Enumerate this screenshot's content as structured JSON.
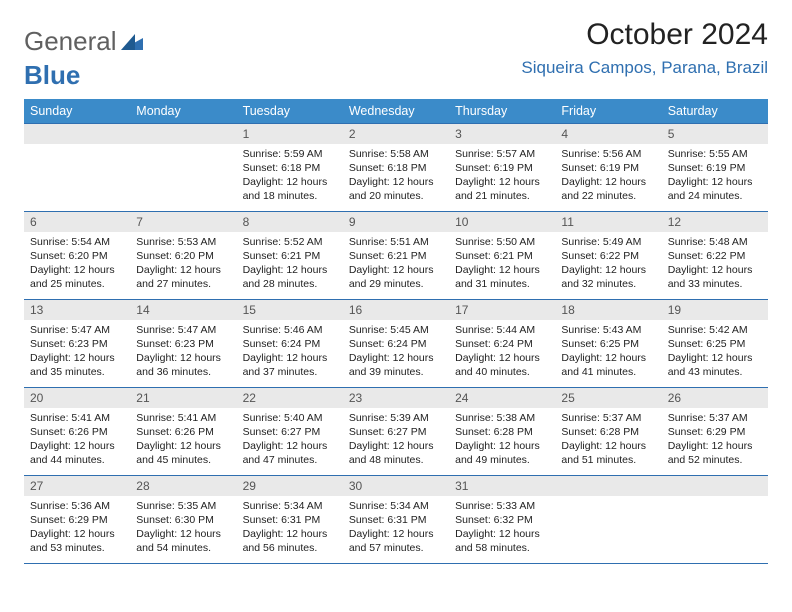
{
  "logo": {
    "general": "General",
    "blue": "Blue"
  },
  "title": "October 2024",
  "location": "Siqueira Campos, Parana, Brazil",
  "colors": {
    "header_bg": "#3b8bc9",
    "header_text": "#ffffff",
    "rule": "#2f6fb0",
    "daynum_bg": "#e9e9e9",
    "accent": "#2f6fb0"
  },
  "weekdays": [
    "Sunday",
    "Monday",
    "Tuesday",
    "Wednesday",
    "Thursday",
    "Friday",
    "Saturday"
  ],
  "weeks": [
    [
      null,
      null,
      {
        "n": "1",
        "sunrise": "5:59 AM",
        "sunset": "6:18 PM",
        "daylight_h": 12,
        "daylight_m": 18
      },
      {
        "n": "2",
        "sunrise": "5:58 AM",
        "sunset": "6:18 PM",
        "daylight_h": 12,
        "daylight_m": 20
      },
      {
        "n": "3",
        "sunrise": "5:57 AM",
        "sunset": "6:19 PM",
        "daylight_h": 12,
        "daylight_m": 21
      },
      {
        "n": "4",
        "sunrise": "5:56 AM",
        "sunset": "6:19 PM",
        "daylight_h": 12,
        "daylight_m": 22
      },
      {
        "n": "5",
        "sunrise": "5:55 AM",
        "sunset": "6:19 PM",
        "daylight_h": 12,
        "daylight_m": 24
      }
    ],
    [
      {
        "n": "6",
        "sunrise": "5:54 AM",
        "sunset": "6:20 PM",
        "daylight_h": 12,
        "daylight_m": 25
      },
      {
        "n": "7",
        "sunrise": "5:53 AM",
        "sunset": "6:20 PM",
        "daylight_h": 12,
        "daylight_m": 27
      },
      {
        "n": "8",
        "sunrise": "5:52 AM",
        "sunset": "6:21 PM",
        "daylight_h": 12,
        "daylight_m": 28
      },
      {
        "n": "9",
        "sunrise": "5:51 AM",
        "sunset": "6:21 PM",
        "daylight_h": 12,
        "daylight_m": 29
      },
      {
        "n": "10",
        "sunrise": "5:50 AM",
        "sunset": "6:21 PM",
        "daylight_h": 12,
        "daylight_m": 31
      },
      {
        "n": "11",
        "sunrise": "5:49 AM",
        "sunset": "6:22 PM",
        "daylight_h": 12,
        "daylight_m": 32
      },
      {
        "n": "12",
        "sunrise": "5:48 AM",
        "sunset": "6:22 PM",
        "daylight_h": 12,
        "daylight_m": 33
      }
    ],
    [
      {
        "n": "13",
        "sunrise": "5:47 AM",
        "sunset": "6:23 PM",
        "daylight_h": 12,
        "daylight_m": 35
      },
      {
        "n": "14",
        "sunrise": "5:47 AM",
        "sunset": "6:23 PM",
        "daylight_h": 12,
        "daylight_m": 36
      },
      {
        "n": "15",
        "sunrise": "5:46 AM",
        "sunset": "6:24 PM",
        "daylight_h": 12,
        "daylight_m": 37
      },
      {
        "n": "16",
        "sunrise": "5:45 AM",
        "sunset": "6:24 PM",
        "daylight_h": 12,
        "daylight_m": 39
      },
      {
        "n": "17",
        "sunrise": "5:44 AM",
        "sunset": "6:24 PM",
        "daylight_h": 12,
        "daylight_m": 40
      },
      {
        "n": "18",
        "sunrise": "5:43 AM",
        "sunset": "6:25 PM",
        "daylight_h": 12,
        "daylight_m": 41
      },
      {
        "n": "19",
        "sunrise": "5:42 AM",
        "sunset": "6:25 PM",
        "daylight_h": 12,
        "daylight_m": 43
      }
    ],
    [
      {
        "n": "20",
        "sunrise": "5:41 AM",
        "sunset": "6:26 PM",
        "daylight_h": 12,
        "daylight_m": 44
      },
      {
        "n": "21",
        "sunrise": "5:41 AM",
        "sunset": "6:26 PM",
        "daylight_h": 12,
        "daylight_m": 45
      },
      {
        "n": "22",
        "sunrise": "5:40 AM",
        "sunset": "6:27 PM",
        "daylight_h": 12,
        "daylight_m": 47
      },
      {
        "n": "23",
        "sunrise": "5:39 AM",
        "sunset": "6:27 PM",
        "daylight_h": 12,
        "daylight_m": 48
      },
      {
        "n": "24",
        "sunrise": "5:38 AM",
        "sunset": "6:28 PM",
        "daylight_h": 12,
        "daylight_m": 49
      },
      {
        "n": "25",
        "sunrise": "5:37 AM",
        "sunset": "6:28 PM",
        "daylight_h": 12,
        "daylight_m": 51
      },
      {
        "n": "26",
        "sunrise": "5:37 AM",
        "sunset": "6:29 PM",
        "daylight_h": 12,
        "daylight_m": 52
      }
    ],
    [
      {
        "n": "27",
        "sunrise": "5:36 AM",
        "sunset": "6:29 PM",
        "daylight_h": 12,
        "daylight_m": 53
      },
      {
        "n": "28",
        "sunrise": "5:35 AM",
        "sunset": "6:30 PM",
        "daylight_h": 12,
        "daylight_m": 54
      },
      {
        "n": "29",
        "sunrise": "5:34 AM",
        "sunset": "6:31 PM",
        "daylight_h": 12,
        "daylight_m": 56
      },
      {
        "n": "30",
        "sunrise": "5:34 AM",
        "sunset": "6:31 PM",
        "daylight_h": 12,
        "daylight_m": 57
      },
      {
        "n": "31",
        "sunrise": "5:33 AM",
        "sunset": "6:32 PM",
        "daylight_h": 12,
        "daylight_m": 58
      },
      null,
      null
    ]
  ],
  "labels": {
    "sunrise": "Sunrise:",
    "sunset": "Sunset:",
    "daylight_prefix": "Daylight:",
    "hours_word": "hours",
    "and_word": "and",
    "minutes_word": "minutes."
  }
}
